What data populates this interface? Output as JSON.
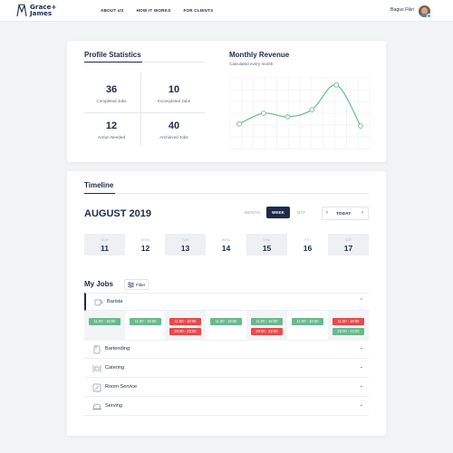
{
  "header": {
    "logo_line1": "Grace+",
    "logo_line2": "James",
    "nav": [
      "ABOUT US",
      "HOW IT WORKS",
      "FOR CLIENTS"
    ],
    "user_name": "Bagus Fikri"
  },
  "profile_stats": {
    "title": "Profile Statistics",
    "items": [
      {
        "value": "36",
        "label": "Completed Jobs"
      },
      {
        "value": "10",
        "label": "Incompleted Jobs"
      },
      {
        "value": "12",
        "label": "Action Needed"
      },
      {
        "value": "40",
        "label": "Archieved Jobs"
      }
    ]
  },
  "revenue": {
    "title": "Monthly Revenue",
    "subtitle": "Calculated every month"
  },
  "chart_data": {
    "type": "line",
    "title": "Monthly Revenue",
    "subtitle": "Calculated every month",
    "xlabel": "",
    "ylabel": "",
    "x": [
      0,
      1,
      2,
      3,
      4,
      5
    ],
    "values": [
      35,
      50,
      45,
      55,
      90,
      32
    ],
    "ylim": [
      0,
      100
    ],
    "grid": true,
    "series_color": "#6fbf98"
  },
  "timeline": {
    "title": "Timeline",
    "month_label": "AUGUST 2019",
    "views": [
      "MONTH",
      "WEEK",
      "DAY"
    ],
    "active_view": "WEEK",
    "today_label": "TODAY",
    "prev_icon": "‹",
    "next_icon": "›",
    "days": [
      {
        "name": "SUN",
        "num": "11"
      },
      {
        "name": "MON",
        "num": "12"
      },
      {
        "name": "TUE",
        "num": "13"
      },
      {
        "name": "WED",
        "num": "14"
      },
      {
        "name": "THU",
        "num": "15"
      },
      {
        "name": "FRI",
        "num": "16"
      },
      {
        "name": "SAT",
        "num": "17"
      }
    ]
  },
  "jobs": {
    "title": "My Jobs",
    "filter_label": "Filter",
    "items": [
      {
        "name": "Barista",
        "icon": "coffee-cup-icon",
        "expanded": true
      },
      {
        "name": "Bartending",
        "icon": "cocktail-icon",
        "expanded": false
      },
      {
        "name": "Catering",
        "icon": "catering-icon",
        "expanded": false
      },
      {
        "name": "Room Service",
        "icon": "room-service-icon",
        "expanded": false
      },
      {
        "name": "Serving",
        "icon": "cloche-icon",
        "expanded": false
      }
    ],
    "shifts": [
      [
        {
          "time": "11:00 - 18:00",
          "status": "green"
        }
      ],
      [
        {
          "time": "11:00 - 18:00",
          "status": "green"
        }
      ],
      [
        {
          "time": "11:00 - 18:00",
          "status": "red"
        },
        {
          "time": "20:00 - 22:00",
          "status": "red"
        }
      ],
      [
        {
          "time": "11:00 - 18:00",
          "status": "green"
        }
      ],
      [
        {
          "time": "11:00 - 18:00",
          "status": "green"
        },
        {
          "time": "20:00 - 22:00",
          "status": "red"
        }
      ],
      [
        {
          "time": "11:00 - 18:00",
          "status": "green"
        }
      ],
      [
        {
          "time": "11:00 - 18:00",
          "status": "red"
        },
        {
          "time": "20:00 - 22:00",
          "status": "green"
        }
      ]
    ]
  },
  "colors": {
    "navy": "#1e2a4a",
    "green": "#69b98c",
    "red": "#e84a4a"
  }
}
